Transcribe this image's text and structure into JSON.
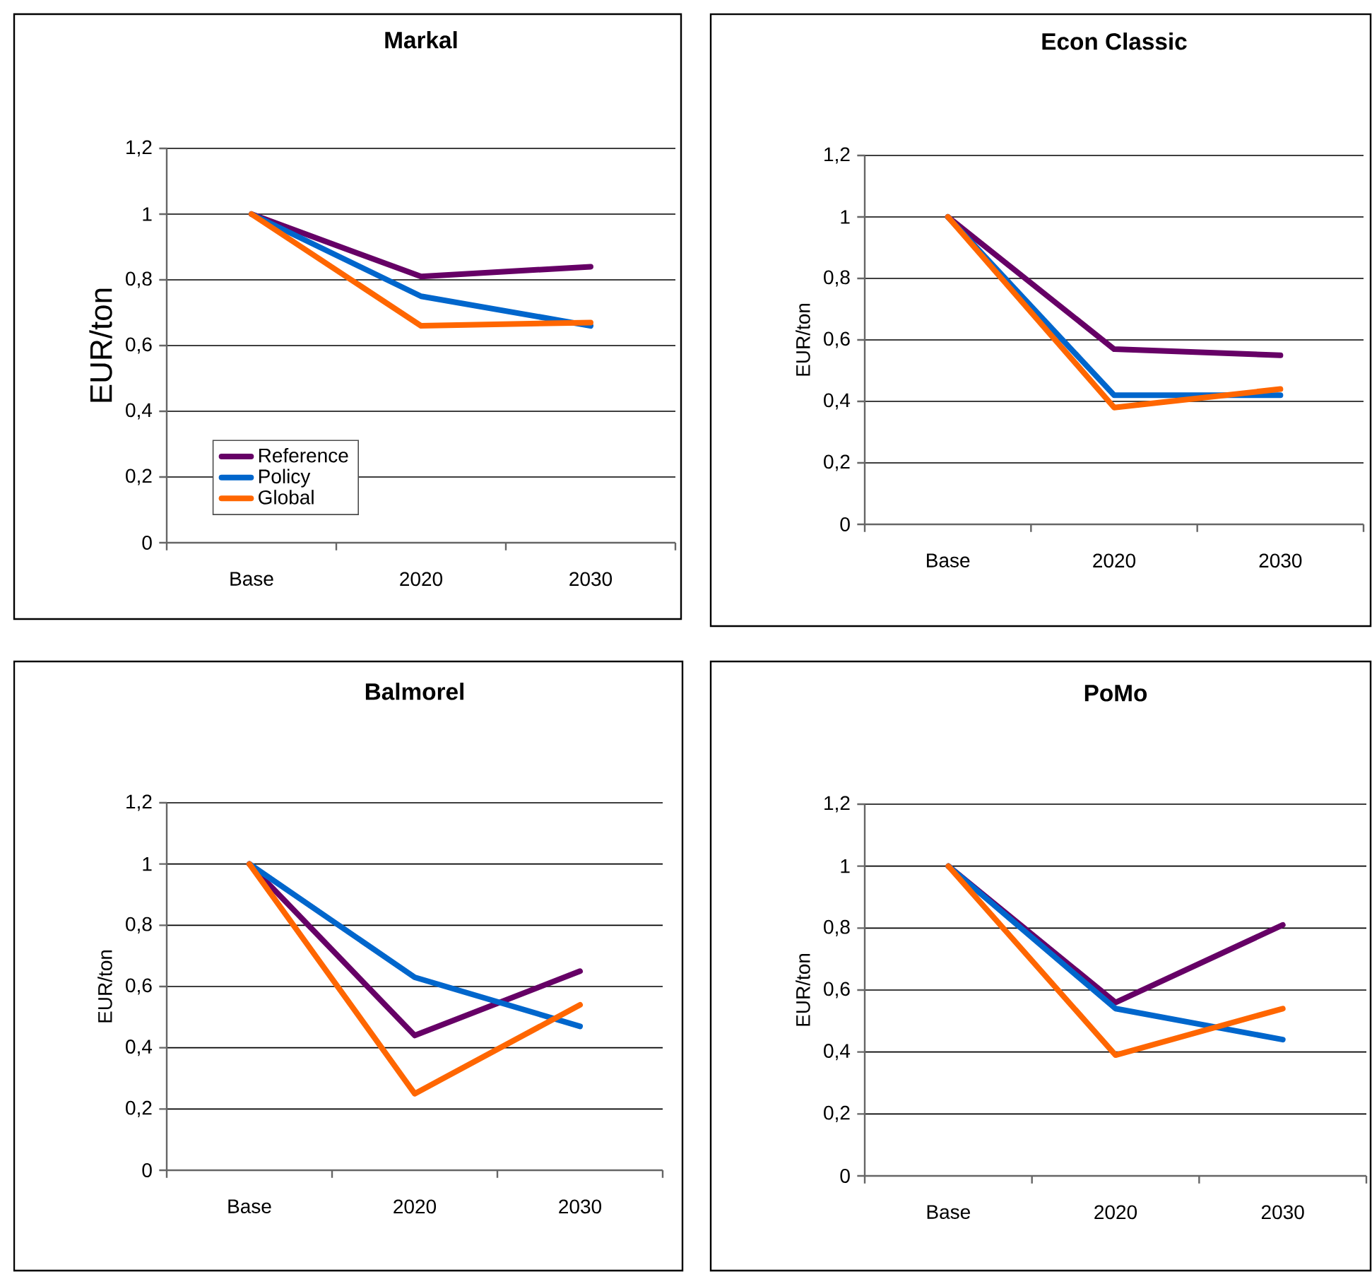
{
  "chart_data": [
    {
      "type": "line",
      "title": "Markal",
      "ylabel": "EUR/ton",
      "categories": [
        "Base",
        "2020",
        "2030"
      ],
      "ylim": [
        0,
        1.2
      ],
      "yticks": [
        0,
        {
          "value": 0.2,
          "label": "0,2"
        },
        {
          "value": 0.4,
          "label": "0,4"
        },
        {
          "value": 0.6,
          "label": "0,6"
        },
        {
          "value": 0.8,
          "label": "0,8"
        },
        1,
        {
          "value": 1.2,
          "label": "1,2"
        }
      ],
      "grid": "y",
      "legend": "bottom left",
      "series": [
        {
          "name": "Reference",
          "color": "#660066",
          "values": [
            1,
            0.81,
            0.84
          ]
        },
        {
          "name": "Policy",
          "color": "#0066cc",
          "values": [
            1,
            0.75,
            0.66
          ]
        },
        {
          "name": "Global",
          "color": "#ff6600",
          "values": [
            1,
            0.66,
            0.67
          ]
        }
      ]
    },
    {
      "type": "line",
      "title": "Econ Classic",
      "ylabel": "EUR/ton",
      "categories": [
        "Base",
        "2020",
        "2030"
      ],
      "ylim": [
        0,
        1.2
      ],
      "yticks": [
        0,
        {
          "value": 0.2,
          "label": "0,2"
        },
        {
          "value": 0.4,
          "label": "0,4"
        },
        {
          "value": 0.6,
          "label": "0,6"
        },
        {
          "value": 0.8,
          "label": "0,8"
        },
        1,
        {
          "value": 1.2,
          "label": "1,2"
        }
      ],
      "grid": "y",
      "series": [
        {
          "color": "#660066",
          "values": [
            1,
            0.57,
            0.55
          ]
        },
        {
          "color": "#0066cc",
          "values": [
            1,
            0.42,
            0.42
          ]
        },
        {
          "color": "#ff6600",
          "values": [
            1,
            0.38,
            0.44
          ]
        }
      ]
    },
    {
      "type": "line",
      "title": "Balmorel",
      "ylabel": "EUR/ton",
      "categories": [
        "Base",
        "2020",
        "2030"
      ],
      "ylim": [
        0,
        1.2
      ],
      "yticks": [
        0,
        {
          "value": 0.2,
          "label": "0,2"
        },
        {
          "value": 0.4,
          "label": "0,4"
        },
        {
          "value": 0.6,
          "label": "0,6"
        },
        {
          "value": 0.8,
          "label": "0,8"
        },
        1,
        {
          "value": 1.2,
          "label": "1,2"
        }
      ],
      "grid": "y",
      "series": [
        {
          "color": "#660066",
          "values": [
            1,
            0.44,
            0.65
          ]
        },
        {
          "color": "#0066cc",
          "values": [
            1,
            0.63,
            0.47
          ]
        },
        {
          "color": "#ff6600",
          "values": [
            1,
            0.25,
            0.54
          ]
        }
      ]
    },
    {
      "type": "line",
      "title": "PoMo",
      "ylabel": "EUR/ton",
      "categories": [
        "Base",
        "2020",
        "2030"
      ],
      "ylim": [
        0,
        1.2
      ],
      "yticks": [
        0,
        {
          "value": 0.2,
          "label": "0,2"
        },
        {
          "value": 0.4,
          "label": "0,4"
        },
        {
          "value": 0.6,
          "label": "0,6"
        },
        {
          "value": 0.8,
          "label": "0,8"
        },
        1,
        {
          "value": 1.2,
          "label": "1,2"
        }
      ],
      "grid": "y",
      "series": [
        {
          "color": "#660066",
          "values": [
            1,
            0.56,
            0.81
          ]
        },
        {
          "color": "#0066cc",
          "values": [
            1,
            0.54,
            0.44
          ]
        },
        {
          "color": "#ff6600",
          "values": [
            1,
            0.39,
            0.54
          ]
        }
      ]
    }
  ]
}
